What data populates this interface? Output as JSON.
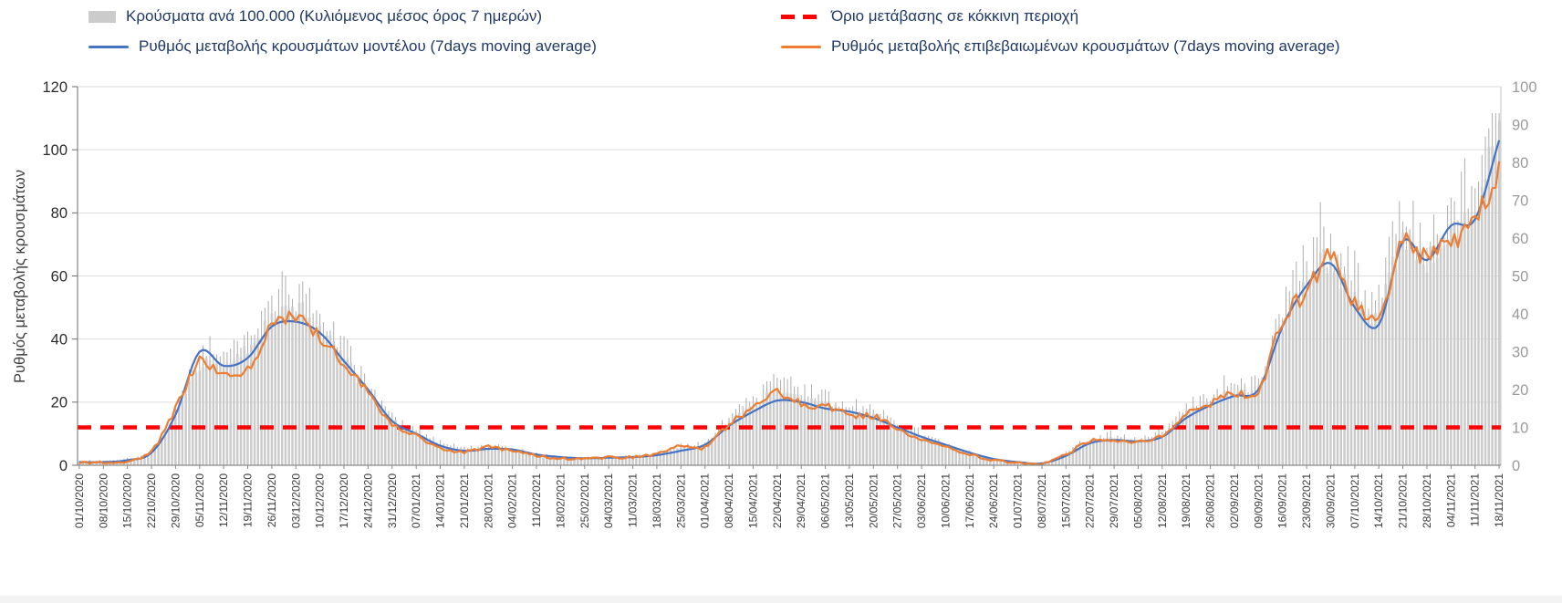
{
  "legend": {
    "cases_bars": "Κρούσματα ανά 100.000 (Κυλιόμενος μέσος όρος 7 ημερών)",
    "red_threshold": "Όριο μετάβασης σε κόκκινη περιοχή",
    "model_line": "Ρυθμός μεταβολής κρουσμάτων μοντέλου (7days moving average)",
    "confirmed_line": "Ρυθμός μεταβολής επιβεβαιωμένων κρουσμάτων (7days moving average)"
  },
  "colors": {
    "bars": "#CBCBCB",
    "bar_whisker": "#ADADAD",
    "threshold": "#FF0000",
    "model": "#4472C4",
    "confirmed": "#ED7D31",
    "gridline": "#DEDEDE"
  },
  "chart_data": {
    "type": "bar+line",
    "title": "",
    "ylabel": "Ρυθμός μεταβολής κρουσμάτων",
    "left_axis": {
      "min": 0,
      "max": 120,
      "ticks": [
        0,
        20,
        40,
        60,
        80,
        100,
        120
      ]
    },
    "right_axis": {
      "min": 0,
      "max": 100,
      "ticks": [
        0,
        10,
        20,
        30,
        40,
        50,
        60,
        70,
        80,
        90,
        100
      ]
    },
    "threshold": {
      "name": "Όριο μετάβασης σε κόκκινη περιοχή",
      "axis": "left",
      "value": 12,
      "color": "#FF0000"
    },
    "grid": "horizontal",
    "legend_position": "top",
    "categories": [
      "01/10/2020",
      "08/10/2020",
      "15/10/2020",
      "22/10/2020",
      "29/10/2020",
      "05/11/2020",
      "12/11/2020",
      "19/11/2020",
      "26/11/2020",
      "03/12/2020",
      "10/12/2020",
      "17/12/2020",
      "24/12/2020",
      "31/12/2020",
      "07/01/2021",
      "14/01/2021",
      "21/01/2021",
      "28/01/2021",
      "04/02/2021",
      "11/02/2021",
      "18/02/2021",
      "25/02/2021",
      "04/03/2021",
      "11/03/2021",
      "18/03/2021",
      "25/03/2021",
      "01/04/2021",
      "08/04/2021",
      "15/04/2021",
      "22/04/2021",
      "29/04/2021",
      "06/05/2021",
      "13/05/2021",
      "20/05/2021",
      "27/05/2021",
      "03/06/2021",
      "10/06/2021",
      "17/06/2021",
      "24/06/2021",
      "01/07/2021",
      "08/07/2021",
      "15/07/2021",
      "22/07/2021",
      "29/07/2021",
      "05/08/2021",
      "12/08/2021",
      "19/08/2021",
      "26/08/2021",
      "02/09/2021",
      "09/09/2021",
      "16/09/2021",
      "23/09/2021",
      "30/09/2021",
      "07/10/2021",
      "14/10/2021",
      "21/10/2021",
      "28/10/2021",
      "04/11/2021",
      "11/11/2021",
      "18/11/2021"
    ],
    "series": [
      {
        "name": "Κρούσματα ανά 100.000 (Κυλιόμενος μέσος όρος 7 ημερών)",
        "type": "bar",
        "axis": "right",
        "color": "#CBCBCB",
        "values": [
          1,
          1.2,
          1.5,
          3.5,
          13,
          27,
          26,
          31,
          38,
          41,
          36,
          28,
          19,
          12,
          8.5,
          5.5,
          4.2,
          4.6,
          4,
          2.6,
          2,
          1.8,
          2,
          2.2,
          2.8,
          4.5,
          5.5,
          11,
          15.5,
          19.5,
          17.5,
          16,
          14,
          13,
          10,
          7.5,
          5,
          3,
          1.6,
          0.9,
          0.5,
          3,
          6.5,
          7,
          6.3,
          8,
          13.5,
          16.5,
          19.5,
          20,
          38,
          48,
          54,
          43,
          40,
          60,
          54,
          61,
          66,
          90
        ]
      },
      {
        "name": "Ρυθμός μεταβολής κρουσμάτων μοντέλου (7days moving average)",
        "type": "line",
        "axis": "left",
        "color": "#4472C4",
        "values": [
          1,
          1,
          1.6,
          4,
          16,
          36,
          31.5,
          34,
          44,
          45.5,
          42,
          33,
          24,
          14,
          10,
          6.2,
          4.6,
          5.2,
          5,
          3.4,
          2.6,
          2.2,
          2.4,
          2.6,
          3.2,
          4.6,
          6.5,
          12.5,
          17,
          20.5,
          20,
          18,
          17,
          15,
          12,
          9,
          6.5,
          4,
          2,
          1,
          0.6,
          3,
          7,
          8,
          7.6,
          9,
          15,
          19,
          22,
          24,
          44,
          57,
          64,
          50,
          44.5,
          71,
          65,
          76,
          78,
          103
        ]
      },
      {
        "name": "Ρυθμός μεταβολής επιβεβαιωμένων κρουσμάτων (7days moving average)",
        "type": "line",
        "axis": "left",
        "color": "#ED7D31",
        "values": [
          0.8,
          0.9,
          1.3,
          4.5,
          18,
          33,
          28.5,
          31,
          43.5,
          46.5,
          41,
          32,
          23,
          13,
          9.5,
          5.6,
          4.2,
          5.8,
          4.4,
          3,
          2.2,
          2,
          2.5,
          2.6,
          3.6,
          6,
          5.8,
          13,
          18.5,
          23,
          19.5,
          18.8,
          16,
          15.5,
          11.5,
          8.5,
          6,
          3.5,
          1.6,
          0.8,
          0.4,
          3.4,
          7.6,
          8,
          7.2,
          9.6,
          16,
          19.5,
          23,
          23.5,
          46,
          55,
          66,
          51,
          47,
          70,
          66,
          71,
          77,
          95
        ]
      }
    ]
  }
}
